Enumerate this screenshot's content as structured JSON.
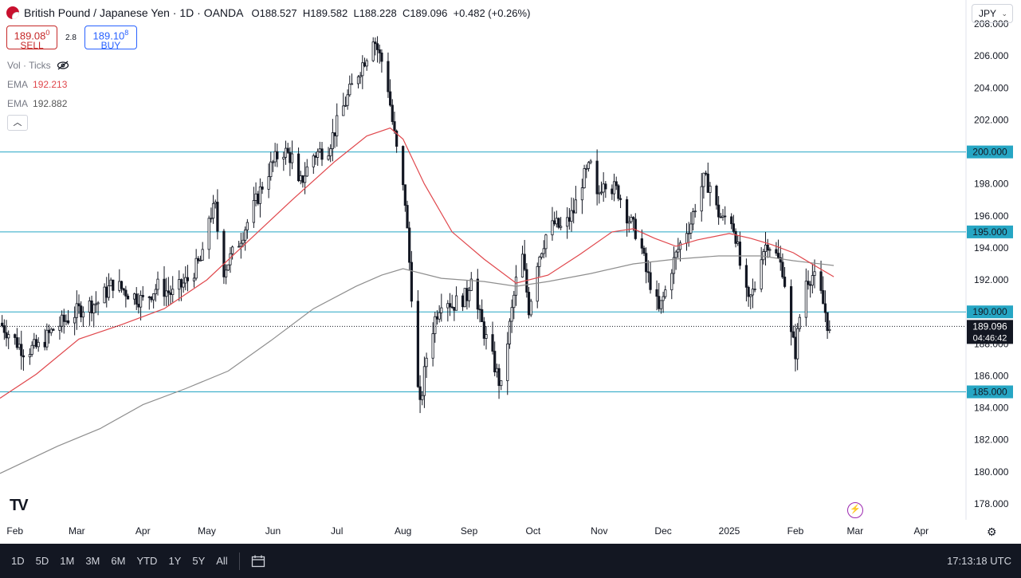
{
  "header": {
    "symbol_title": "British Pound / Japanese Yen · 1D · OANDA",
    "open_label": "O",
    "open": "188.527",
    "high_label": "H",
    "high": "189.582",
    "low_label": "L",
    "low": "188.228",
    "close_label": "C",
    "close": "189.096",
    "change": "+0.482 (+0.26%)"
  },
  "trade": {
    "sell_price": "189.08",
    "sell_sup": "0",
    "sell_label": "SELL",
    "spread": "2.8",
    "buy_price": "189.10",
    "buy_sup": "8",
    "buy_label": "BUY"
  },
  "indicators": {
    "vol_label": "Vol · Ticks",
    "ema1_label": "EMA",
    "ema1_value": "192.213",
    "ema2_label": "EMA",
    "ema2_value": "192.882"
  },
  "currency": {
    "label": "JPY",
    "chevron": "⌄"
  },
  "icons": {
    "collapse": "︿",
    "eye_off": "eye-off-icon",
    "bolt": "⚡",
    "gear": "⚙",
    "calendar": "📅",
    "logo": "TV"
  },
  "price_badge": {
    "price": "189.096",
    "countdown": "04:46:42"
  },
  "bottom": {
    "ranges": [
      "1D",
      "5D",
      "1M",
      "3M",
      "6M",
      "YTD",
      "1Y",
      "5Y",
      "All"
    ],
    "clock": "17:13:18 UTC"
  },
  "colors": {
    "candle": "#131722",
    "ema_fast": "#e0474c",
    "ema_slow": "#8e8e8e",
    "hline": "#26a6c4",
    "badge": "#26a6c4",
    "price_badge": "#131722"
  },
  "chart_data": {
    "type": "candlestick",
    "title": "British Pound / Japanese Yen · 1D · OANDA",
    "ylim": [
      177,
      209.5
    ],
    "y_ticks": [
      178,
      180,
      182,
      184,
      186,
      188,
      190,
      192,
      194,
      196,
      198,
      200,
      202,
      204,
      206,
      208
    ],
    "x_labels": [
      {
        "label": "Feb",
        "day": 0
      },
      {
        "label": "Mar",
        "day": 29
      },
      {
        "label": "Apr",
        "day": 60
      },
      {
        "label": "May",
        "day": 90
      },
      {
        "label": "Jun",
        "day": 121
      },
      {
        "label": "Jul",
        "day": 151
      },
      {
        "label": "Aug",
        "day": 182
      },
      {
        "label": "Sep",
        "day": 213
      },
      {
        "label": "Oct",
        "day": 243
      },
      {
        "label": "Nov",
        "day": 274
      },
      {
        "label": "Dec",
        "day": 304
      },
      {
        "label": "2025",
        "day": 335
      },
      {
        "label": "Feb",
        "day": 366
      },
      {
        "label": "Mar",
        "day": 394
      },
      {
        "label": "Apr",
        "day": 425
      }
    ],
    "x_range_days": [
      -7,
      446
    ],
    "horizontal_levels": [
      {
        "value": 200.0,
        "label": "200.000"
      },
      {
        "value": 195.0,
        "label": "195.000"
      },
      {
        "value": 190.0,
        "label": "190.000"
      },
      {
        "value": 185.0,
        "label": "185.000"
      }
    ],
    "last_price": 189.096,
    "close_anchors": [
      [
        -7,
        189.3
      ],
      [
        4,
        187.6
      ],
      [
        11,
        187.8
      ],
      [
        18,
        188.9
      ],
      [
        25,
        189.6
      ],
      [
        32,
        190.3
      ],
      [
        39,
        190.6
      ],
      [
        46,
        191.8
      ],
      [
        53,
        191.2
      ],
      [
        60,
        190.7
      ],
      [
        67,
        191.6
      ],
      [
        74,
        191.1
      ],
      [
        81,
        192.0
      ],
      [
        88,
        193.4
      ],
      [
        90,
        195.8
      ],
      [
        94,
        196.5
      ],
      [
        97,
        192.4
      ],
      [
        104,
        194.1
      ],
      [
        111,
        196.2
      ],
      [
        118,
        198.6
      ],
      [
        125,
        200.2
      ],
      [
        130,
        199.6
      ],
      [
        133,
        197.8
      ],
      [
        140,
        199.8
      ],
      [
        147,
        200.3
      ],
      [
        154,
        202.8
      ],
      [
        160,
        204.7
      ],
      [
        165,
        206.1
      ],
      [
        168,
        207.3
      ],
      [
        171,
        206.0
      ],
      [
        174,
        205.1
      ],
      [
        177,
        201.9
      ],
      [
        180,
        199.2
      ],
      [
        183,
        196.9
      ],
      [
        186,
        191.2
      ],
      [
        188,
        186.2
      ],
      [
        190,
        184.0
      ],
      [
        193,
        187.2
      ],
      [
        197,
        189.6
      ],
      [
        201,
        191.2
      ],
      [
        205,
        190.4
      ],
      [
        208,
        190.7
      ],
      [
        212,
        191.0
      ],
      [
        214,
        192.5
      ],
      [
        217,
        190.1
      ],
      [
        221,
        188.3
      ],
      [
        225,
        186.6
      ],
      [
        228,
        185.2
      ],
      [
        231,
        188.2
      ],
      [
        235,
        191.9
      ],
      [
        238,
        193.4
      ],
      [
        241,
        190.2
      ],
      [
        245,
        193.2
      ],
      [
        249,
        194.8
      ],
      [
        253,
        195.5
      ],
      [
        257,
        195.1
      ],
      [
        262,
        196.3
      ],
      [
        266,
        198.2
      ],
      [
        270,
        199.1
      ],
      [
        273,
        197.0
      ],
      [
        276,
        198.4
      ],
      [
        279,
        197.9
      ],
      [
        283,
        197.5
      ],
      [
        286,
        196.4
      ],
      [
        289,
        195.5
      ],
      [
        293,
        194.6
      ],
      [
        296,
        192.5
      ],
      [
        299,
        191.5
      ],
      [
        302,
        190.0
      ],
      [
        305,
        191.3
      ],
      [
        308,
        192.8
      ],
      [
        311,
        193.9
      ],
      [
        314,
        194.9
      ],
      [
        317,
        195.6
      ],
      [
        320,
        197.2
      ],
      [
        323,
        198.2
      ],
      [
        326,
        197.9
      ],
      [
        329,
        196.4
      ],
      [
        332,
        195.7
      ],
      [
        335,
        196.3
      ],
      [
        338,
        194.8
      ],
      [
        341,
        192.0
      ],
      [
        344,
        190.5
      ],
      [
        347,
        191.6
      ],
      [
        350,
        193.7
      ],
      [
        353,
        194.4
      ],
      [
        357,
        193.5
      ],
      [
        360,
        192.7
      ],
      [
        362,
        191.0
      ],
      [
        364,
        188.5
      ],
      [
        366,
        187.5
      ],
      [
        368,
        189.7
      ],
      [
        371,
        192.0
      ],
      [
        374,
        192.3
      ],
      [
        377,
        191.5
      ],
      [
        380,
        190.0
      ],
      [
        382,
        188.6
      ],
      [
        384,
        189.1
      ]
    ],
    "ema_fast": [
      [
        -7,
        184.6
      ],
      [
        10,
        186.1
      ],
      [
        30,
        188.3
      ],
      [
        50,
        189.2
      ],
      [
        70,
        190.2
      ],
      [
        90,
        192.0
      ],
      [
        110,
        194.5
      ],
      [
        130,
        197.0
      ],
      [
        150,
        199.4
      ],
      [
        165,
        201.0
      ],
      [
        176,
        201.5
      ],
      [
        182,
        200.8
      ],
      [
        192,
        198.0
      ],
      [
        205,
        195.0
      ],
      [
        220,
        193.3
      ],
      [
        235,
        191.8
      ],
      [
        250,
        192.3
      ],
      [
        265,
        193.6
      ],
      [
        280,
        195.0
      ],
      [
        290,
        195.2
      ],
      [
        300,
        194.6
      ],
      [
        310,
        194.1
      ],
      [
        320,
        194.5
      ],
      [
        335,
        194.9
      ],
      [
        345,
        194.6
      ],
      [
        355,
        194.2
      ],
      [
        365,
        193.7
      ],
      [
        375,
        192.9
      ],
      [
        384,
        192.2
      ]
    ],
    "ema_slow": [
      [
        -7,
        179.9
      ],
      [
        20,
        181.6
      ],
      [
        40,
        182.7
      ],
      [
        60,
        184.2
      ],
      [
        80,
        185.2
      ],
      [
        100,
        186.3
      ],
      [
        120,
        188.2
      ],
      [
        140,
        190.2
      ],
      [
        160,
        191.6
      ],
      [
        172,
        192.3
      ],
      [
        182,
        192.7
      ],
      [
        200,
        192.1
      ],
      [
        220,
        191.9
      ],
      [
        235,
        191.6
      ],
      [
        250,
        191.9
      ],
      [
        270,
        192.4
      ],
      [
        290,
        193.0
      ],
      [
        310,
        193.3
      ],
      [
        330,
        193.5
      ],
      [
        350,
        193.5
      ],
      [
        365,
        193.2
      ],
      [
        384,
        192.9
      ]
    ]
  }
}
